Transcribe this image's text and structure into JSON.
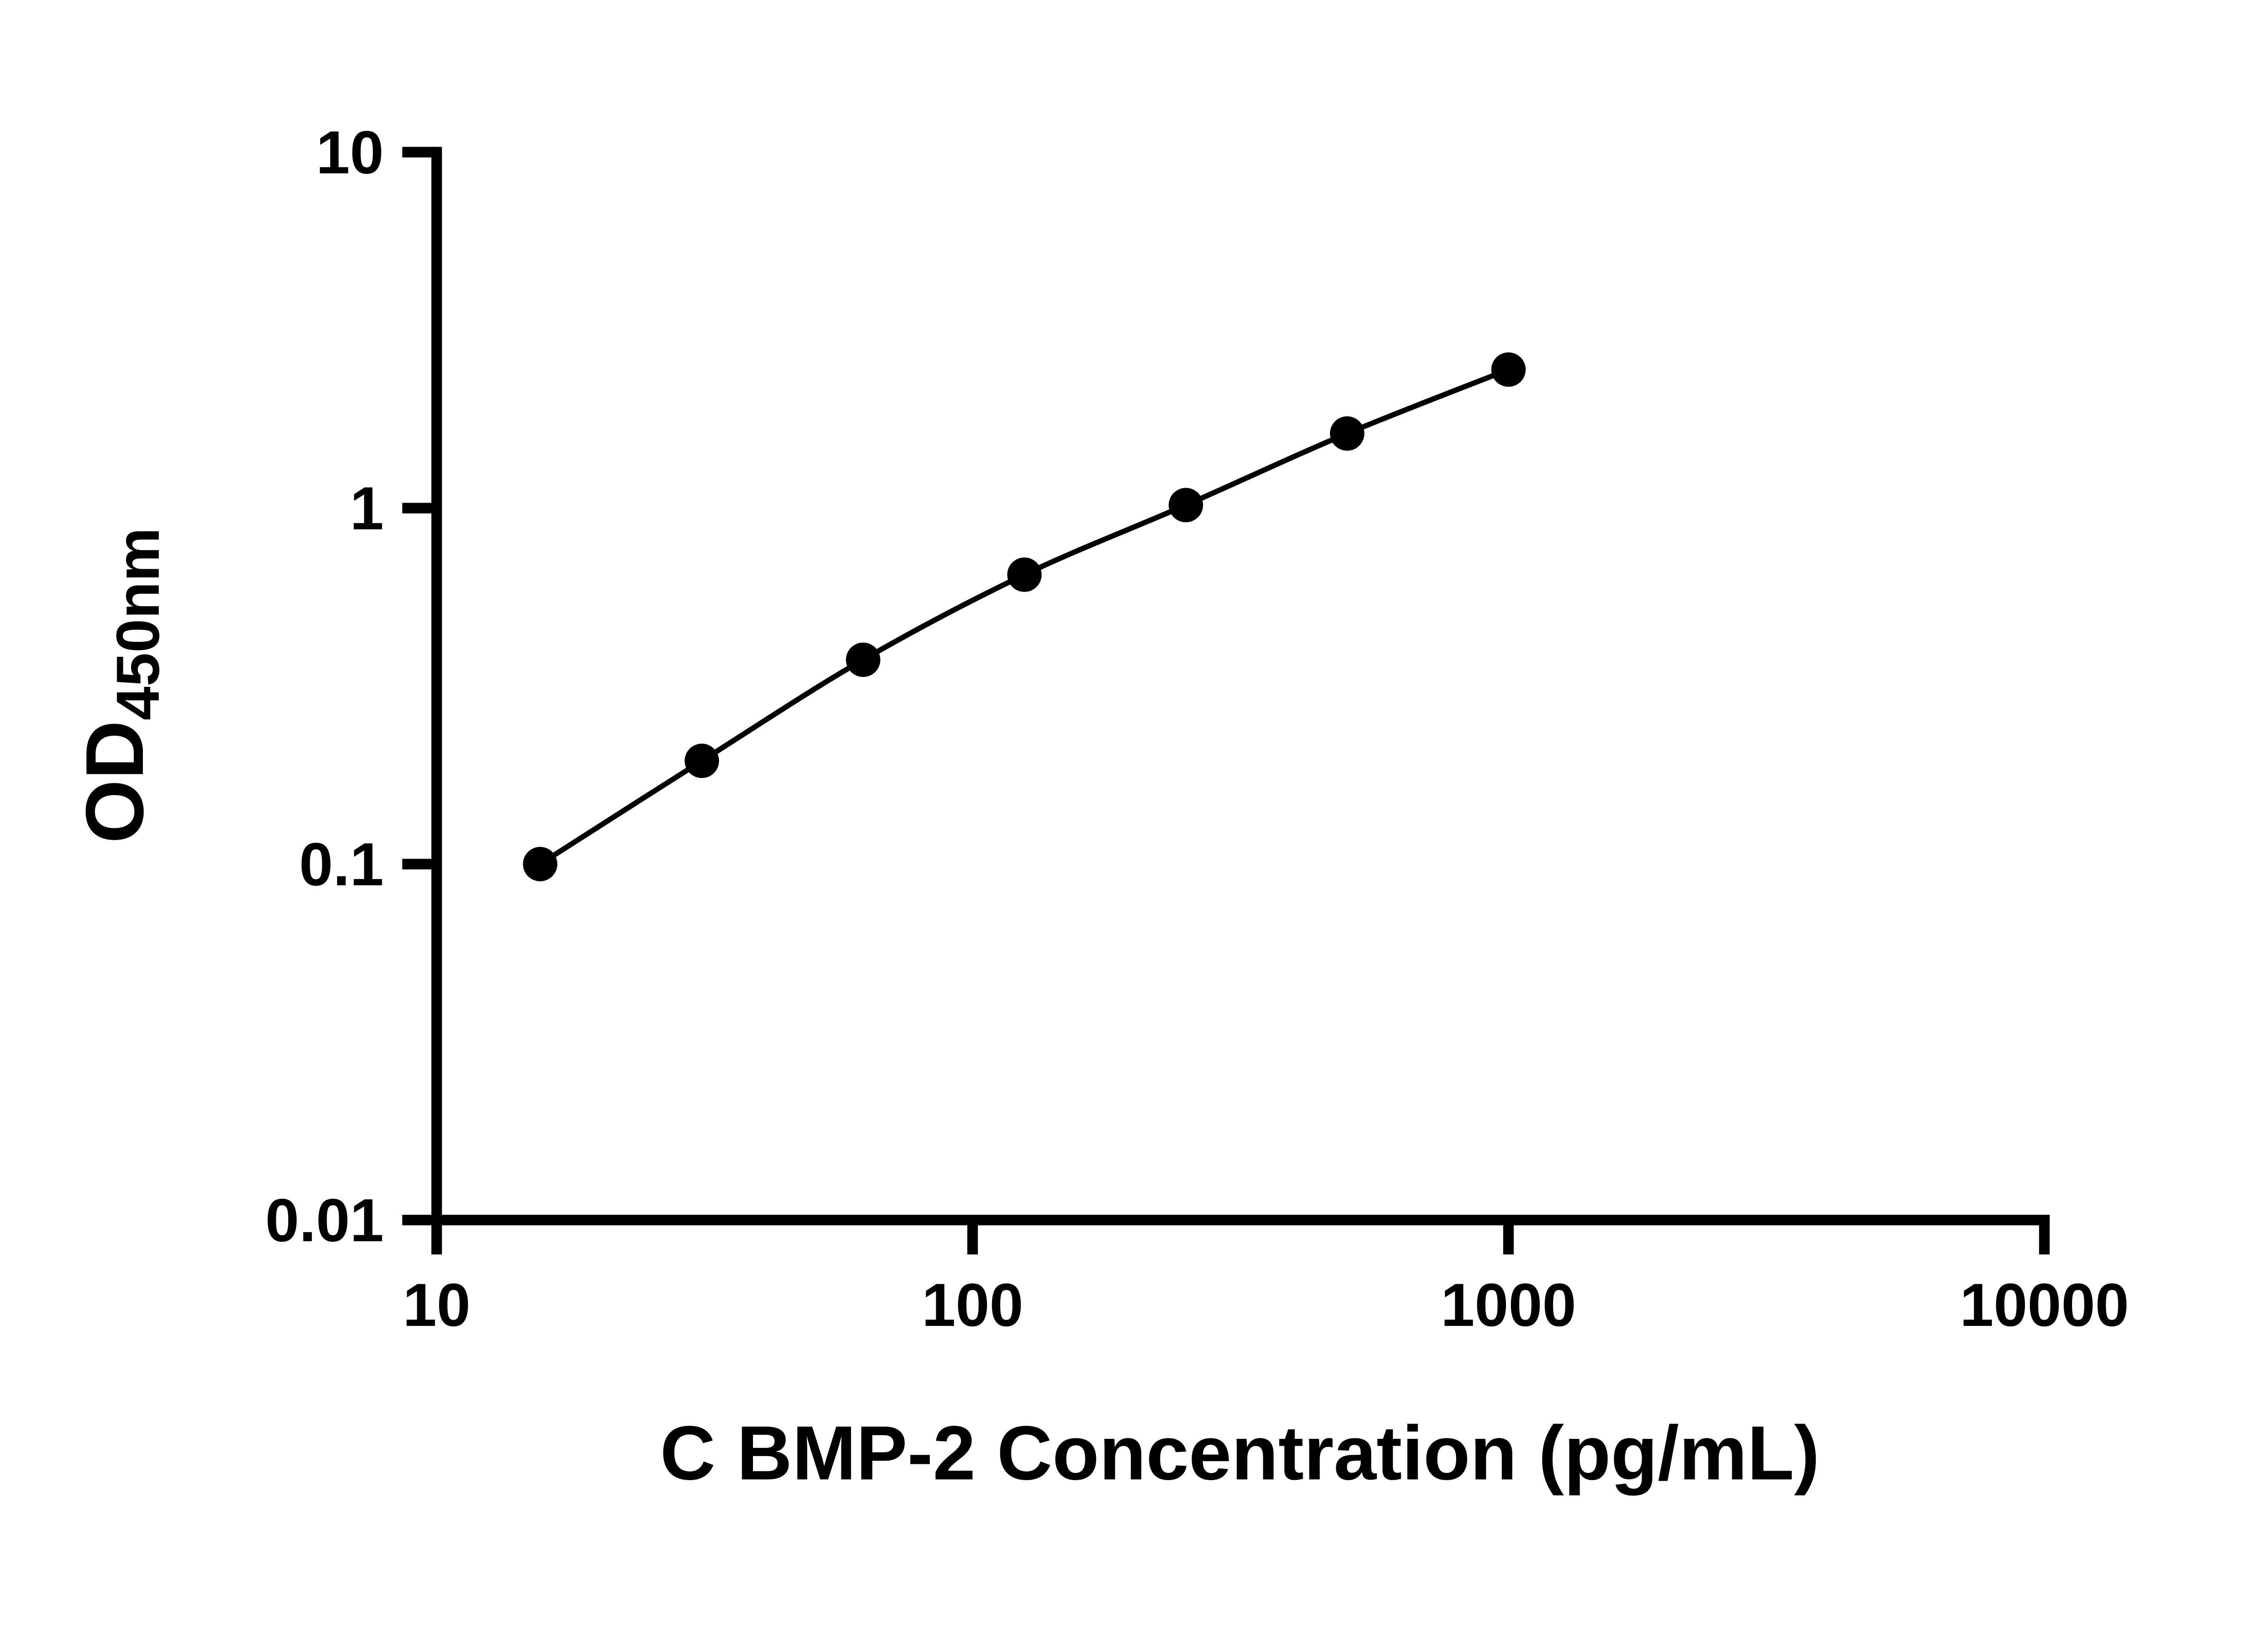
{
  "figure": {
    "background": "#ffffff",
    "ink_color": "#000000"
  },
  "chart_data": {
    "type": "scatter",
    "title": "",
    "xlabel": "C BMP-2 Concentration (pg/mL)",
    "ylabel_main": "OD",
    "ylabel_sub": "450nm",
    "x_scale": "log10",
    "y_scale": "log10",
    "xlim": [
      10,
      10000
    ],
    "ylim": [
      0.01,
      10
    ],
    "x_ticks": [
      "10",
      "100",
      "1000",
      "10000"
    ],
    "y_ticks": [
      "10",
      "1",
      "0.1",
      "0.01"
    ],
    "grid": false,
    "legend_position": "none",
    "marker_color": "#000000",
    "line_color": "#000000",
    "points": [
      {
        "x": 15.6,
        "y": 0.1
      },
      {
        "x": 31.25,
        "y": 0.195
      },
      {
        "x": 62.5,
        "y": 0.375
      },
      {
        "x": 125,
        "y": 0.65
      },
      {
        "x": 250,
        "y": 1.02
      },
      {
        "x": 500,
        "y": 1.62
      },
      {
        "x": 1000,
        "y": 2.45
      }
    ]
  }
}
